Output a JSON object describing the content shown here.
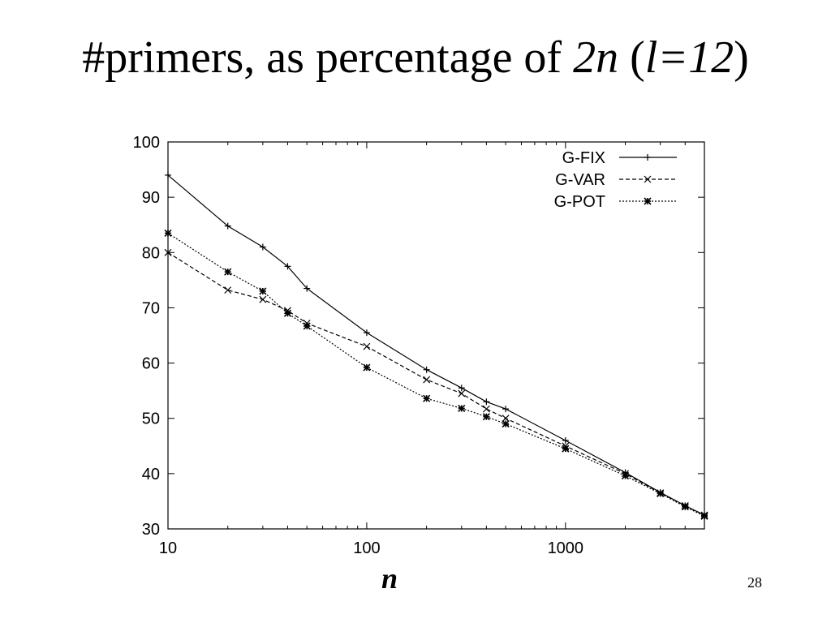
{
  "slide": {
    "title_parts": {
      "prefix": "#primers, as percentage of ",
      "var1": "2n",
      "mid": " (",
      "var2": "l=12",
      "suffix": ")"
    },
    "page_number": "28"
  },
  "chart_data": {
    "type": "line",
    "title": "",
    "xlabel": "n",
    "ylabel": "",
    "xscale": "log",
    "xlim": [
      10,
      5000
    ],
    "ylim": [
      30,
      100
    ],
    "xticks": [
      10,
      100,
      1000
    ],
    "xtick_labels": [
      "10",
      "100",
      "1000"
    ],
    "yticks": [
      30,
      40,
      50,
      60,
      70,
      80,
      90,
      100
    ],
    "ytick_labels": [
      "30",
      "40",
      "50",
      "60",
      "70",
      "80",
      "90",
      "100"
    ],
    "grid": false,
    "legend_position": "top-right",
    "series": [
      {
        "name": "G-FIX",
        "line_style": "solid",
        "marker": "plus",
        "x": [
          10,
          20,
          30,
          40,
          50,
          100,
          200,
          300,
          400,
          500,
          1000,
          2000,
          3000,
          4000,
          5000
        ],
        "y": [
          94,
          84.8,
          81,
          77.5,
          73.5,
          65.5,
          58.8,
          55.5,
          53,
          51.7,
          46,
          40.2,
          36.6,
          34.2,
          32.5
        ]
      },
      {
        "name": "G-VAR",
        "line_style": "dashed",
        "marker": "cross",
        "x": [
          10,
          20,
          30,
          40,
          50,
          100,
          200,
          300,
          400,
          500,
          1000,
          2000,
          3000,
          4000,
          5000
        ],
        "y": [
          80,
          73.2,
          71.5,
          69.5,
          67.2,
          63,
          57,
          54.5,
          51.7,
          50,
          45,
          40,
          36.5,
          34.2,
          32.5
        ]
      },
      {
        "name": "G-POT",
        "line_style": "dotted",
        "marker": "star",
        "x": [
          10,
          20,
          30,
          40,
          50,
          100,
          200,
          300,
          400,
          500,
          1000,
          2000,
          3000,
          4000,
          5000
        ],
        "y": [
          83.5,
          76.5,
          73,
          69,
          66.7,
          59.2,
          53.6,
          51.8,
          50.3,
          49,
          44.5,
          39.6,
          36.4,
          34,
          32.3
        ]
      }
    ]
  }
}
